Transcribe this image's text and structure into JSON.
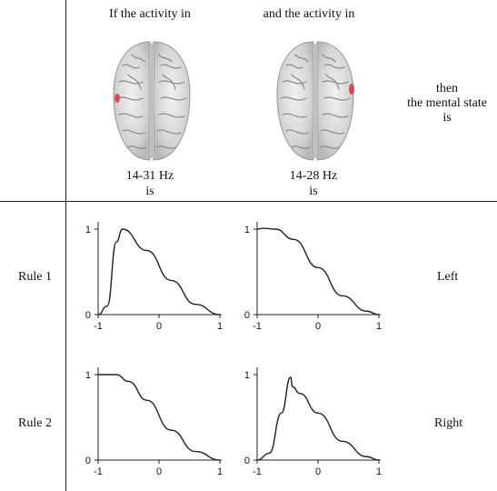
{
  "header": {
    "col1": "If  the activity in",
    "col2": "and the activity in",
    "col3_lines": [
      "then",
      "the mental state",
      "is"
    ]
  },
  "bands": {
    "col1": {
      "freq": "14-31 Hz",
      "is": "is"
    },
    "col2": {
      "freq": "14-28 Hz",
      "is": "is"
    }
  },
  "rules": [
    {
      "label": "Rule 1",
      "output": "Left"
    },
    {
      "label": "Rule 2",
      "output": "Right"
    }
  ],
  "axis": {
    "x_ticks": [
      "-1",
      "0",
      "1"
    ],
    "y_ticks": [
      "0",
      "1"
    ]
  },
  "colors": {
    "activation": "#e03040",
    "line": "#222222"
  },
  "icons": [
    "brain-top-view-icon",
    "brain-top-view-icon"
  ],
  "chart_data": [
    {
      "type": "line",
      "x": [
        -1,
        -0.85,
        -0.7,
        -0.6,
        -0.2,
        0.2,
        0.6,
        1
      ],
      "y": [
        0,
        0.1,
        0.85,
        1,
        0.75,
        0.4,
        0.12,
        0
      ],
      "ylim": [
        0,
        1
      ],
      "xlim": [
        -1,
        1
      ]
    },
    {
      "type": "line",
      "x": [
        -1,
        -0.9,
        -0.7,
        -0.4,
        0,
        0.4,
        0.8,
        1
      ],
      "y": [
        1,
        1.01,
        1,
        0.88,
        0.55,
        0.22,
        0.04,
        0
      ],
      "ylim": [
        0,
        1
      ],
      "xlim": [
        -1,
        1
      ]
    },
    {
      "type": "line",
      "x": [
        -1,
        -0.7,
        -0.5,
        -0.2,
        0.2,
        0.6,
        1
      ],
      "y": [
        1,
        1,
        0.92,
        0.7,
        0.35,
        0.1,
        0
      ],
      "ylim": [
        0,
        1
      ],
      "xlim": [
        -1,
        1
      ]
    },
    {
      "type": "line",
      "x": [
        -1,
        -0.8,
        -0.6,
        -0.45,
        -0.42,
        -0.3,
        0,
        0.4,
        0.8,
        1
      ],
      "y": [
        0,
        0.08,
        0.55,
        0.97,
        0.86,
        0.78,
        0.55,
        0.22,
        0.04,
        0
      ],
      "ylim": [
        0,
        1
      ],
      "xlim": [
        -1,
        1
      ]
    }
  ]
}
